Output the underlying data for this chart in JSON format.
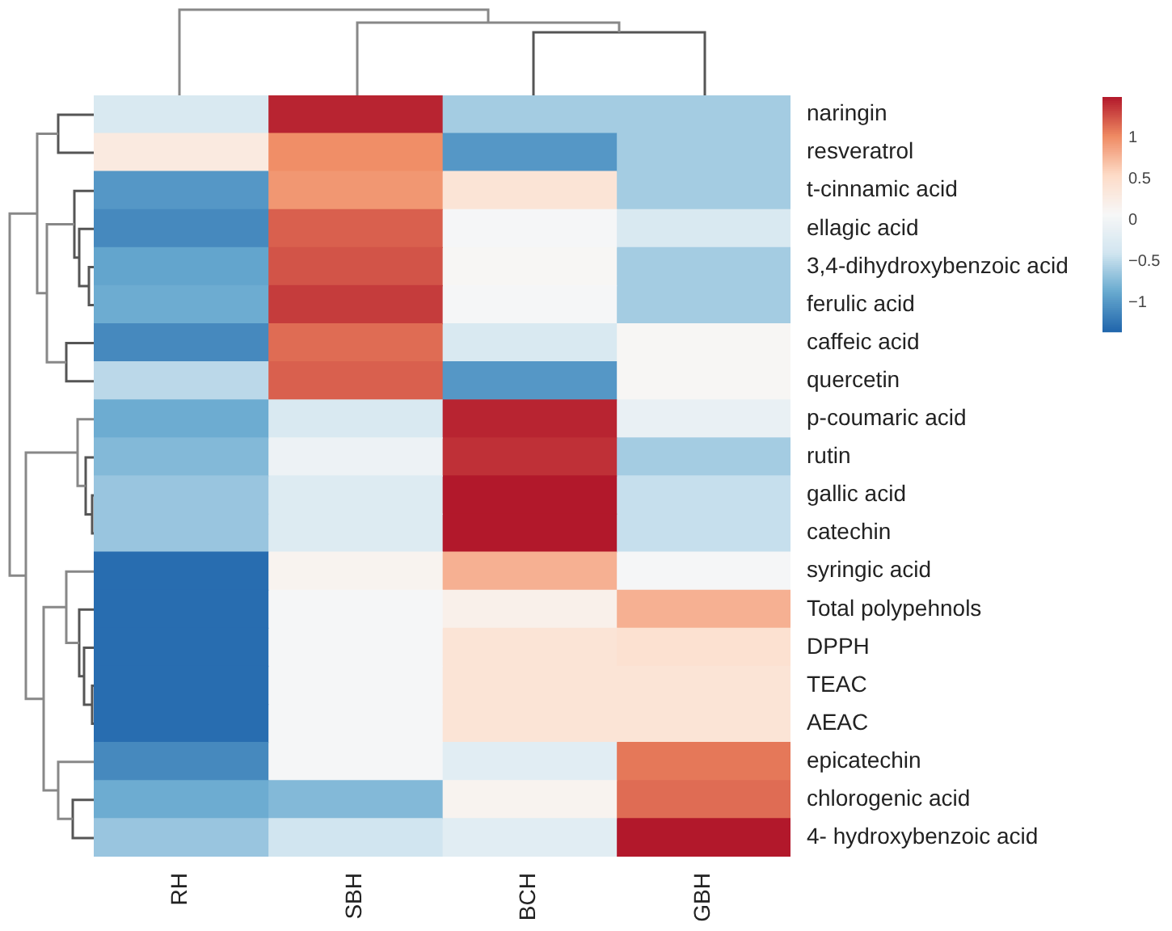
{
  "chart_data": {
    "type": "heatmap",
    "categories": [
      "RH",
      "SBH",
      "BCH",
      "GBH"
    ],
    "y_categories": [
      "naringin",
      "resveratrol",
      "t-cinnamic acid",
      "ellagic acid",
      "3,4-dihydroxybenzoic acid",
      "ferulic acid",
      "caffeic acid",
      "quercetin",
      "p-coumaric acid",
      "rutin",
      "gallic acid",
      "catechin",
      "syringic acid",
      "Total polypehnols",
      "DPPH",
      "TEAC",
      "AEAC",
      "epicatechin",
      "chlorogenic acid",
      "4- hydroxybenzoic acid"
    ],
    "cells": [
      [
        -0.3,
        1.45,
        -0.6,
        -0.6
      ],
      [
        0.3,
        1.0,
        -1.0,
        -0.6
      ],
      [
        -1.0,
        0.95,
        0.4,
        -0.6
      ],
      [
        -1.1,
        1.2,
        0.05,
        -0.3
      ],
      [
        -0.9,
        1.25,
        0.1,
        -0.6
      ],
      [
        -0.85,
        1.35,
        0.05,
        -0.6
      ],
      [
        -1.1,
        1.15,
        -0.3,
        0.1
      ],
      [
        -0.5,
        1.2,
        -1.0,
        0.1
      ],
      [
        -0.85,
        -0.3,
        1.45,
        -0.1
      ],
      [
        -0.75,
        -0.05,
        1.4,
        -0.6
      ],
      [
        -0.65,
        -0.25,
        1.5,
        -0.45
      ],
      [
        -0.65,
        -0.25,
        1.5,
        -0.45
      ],
      [
        -1.3,
        0.15,
        0.8,
        0.05
      ],
      [
        -1.3,
        0.05,
        0.2,
        0.8
      ],
      [
        -1.3,
        0.05,
        0.4,
        0.45
      ],
      [
        -1.3,
        0.05,
        0.4,
        0.4
      ],
      [
        -1.3,
        0.05,
        0.4,
        0.4
      ],
      [
        -1.1,
        0.05,
        -0.2,
        1.1
      ],
      [
        -0.85,
        -0.75,
        0.15,
        1.15
      ],
      [
        -0.65,
        -0.4,
        -0.2,
        1.5
      ]
    ],
    "clim": [
      -1.35,
      1.5
    ],
    "cticks": [
      -1,
      -0.5,
      0,
      0.5,
      1
    ]
  }
}
